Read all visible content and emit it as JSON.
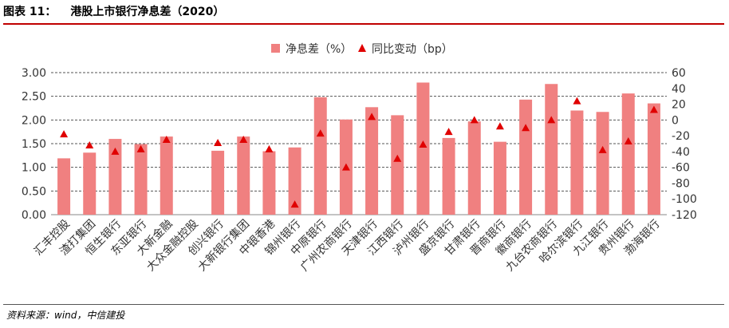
{
  "figure": {
    "label": "图表 11：",
    "title": "港股上市银行净息差（2020）",
    "source": "资料来源：wind，中信建投"
  },
  "colors": {
    "bar": "#f08080",
    "marker": "#e00000",
    "grid": "#555555",
    "title_rule": "#c00000"
  },
  "chart_data": {
    "type": "bar",
    "title": "",
    "legend_position": "top-center",
    "categories": [
      "汇丰控股",
      "渣打集团",
      "恒生银行",
      "东亚银行",
      "大新金融",
      "大众金融控股",
      "创兴银行",
      "大新银行集团",
      "中银香港",
      "锦州银行",
      "中原银行",
      "广州农商银行",
      "天津银行",
      "江西银行",
      "泸州银行",
      "盛京银行",
      "甘肃银行",
      "晋商银行",
      "徽商银行",
      "九台农商银行",
      "哈尔滨银行",
      "九江银行",
      "贵州银行",
      "渤海银行"
    ],
    "series": [
      {
        "name": "净息差（%）",
        "type": "bar",
        "axis": "left",
        "values": [
          1.19,
          1.31,
          1.6,
          1.49,
          1.65,
          null,
          1.35,
          1.65,
          1.34,
          1.42,
          2.48,
          2.01,
          2.27,
          2.1,
          2.79,
          1.62,
          1.97,
          1.54,
          2.43,
          2.76,
          2.2,
          2.17,
          2.56,
          2.35
        ]
      },
      {
        "name": "同比变动（bp）",
        "type": "scatter",
        "marker": "triangle",
        "axis": "right",
        "values": [
          -18,
          -32,
          -40,
          -37,
          -25,
          null,
          -29,
          -25,
          -37,
          -107,
          -17,
          -60,
          4,
          -49,
          -31,
          -15,
          0,
          -8,
          -10,
          0,
          24,
          -38,
          -27,
          13
        ]
      }
    ],
    "y_left": {
      "range": [
        0,
        3
      ],
      "ticks": [
        "0.00",
        "0.50",
        "1.00",
        "1.50",
        "2.00",
        "2.50",
        "3.00"
      ]
    },
    "y_right": {
      "range": [
        -120,
        60
      ],
      "ticks": [
        "60",
        "40",
        "20",
        "0",
        "-20",
        "-40",
        "-60",
        "-80",
        "-100",
        "-120"
      ]
    },
    "grid": true
  }
}
